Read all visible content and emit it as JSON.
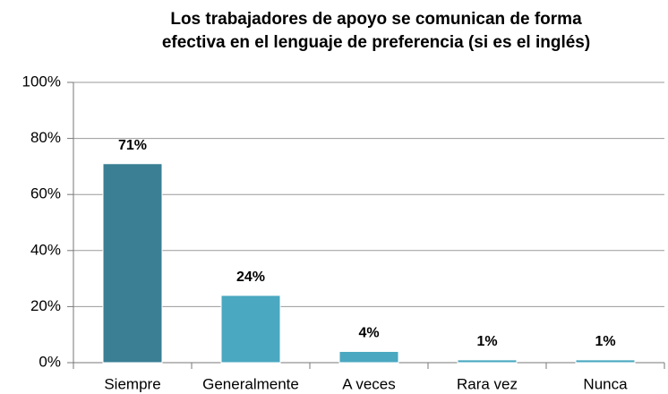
{
  "chart_data": {
    "type": "bar",
    "title": [
      "Los trabajadores de apoyo se comunican de forma",
      "efectiva en el lenguaje de preferencia (si es el inglés)"
    ],
    "categories": [
      "Siempre",
      "Generalmente",
      "A veces",
      "Rara vez",
      "Nunca"
    ],
    "values": [
      71,
      24,
      4,
      1,
      1
    ],
    "value_labels": [
      "71%",
      "24%",
      "4%",
      "1%",
      "1%"
    ],
    "colors": [
      "#3a7f94",
      "#4aa8c0",
      "#4aa8c0",
      "#4aa8c0",
      "#4aa8c0"
    ],
    "ylim": [
      0,
      100
    ],
    "yticks": [
      {
        "value": 0,
        "label": "0%"
      },
      {
        "value": 20,
        "label": "20%"
      },
      {
        "value": 40,
        "label": "40%"
      },
      {
        "value": 60,
        "label": "60%"
      },
      {
        "value": 80,
        "label": "80%"
      },
      {
        "value": 100,
        "label": "100%"
      }
    ],
    "grid": true
  }
}
